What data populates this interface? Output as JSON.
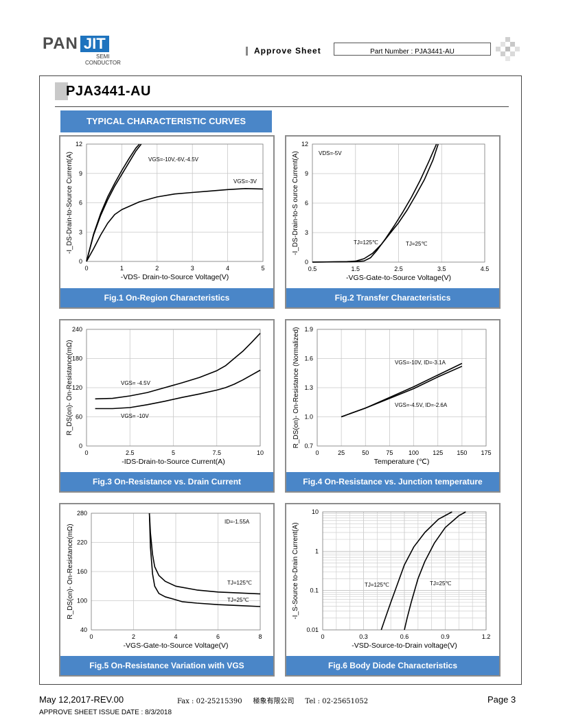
{
  "header": {
    "logo_main": "PAN",
    "logo_accent": "JIT",
    "logo_semi": "SEMI",
    "logo_conductor": "CONDUCTOR",
    "approve_sheet": "Approve Sheet",
    "part_number": "Part Number : PJA3441-AU"
  },
  "title": "PJA3441-AU",
  "section_banner": "TYPICAL CHARACTERISTIC CURVES",
  "chart_data": [
    {
      "type": "line",
      "caption": "Fig.1 On-Region Characteristics",
      "xlabel": "-VDS- Drain-to-Source Voltage(V)",
      "ylabel": "-I_DS-Drain-to-Source Current(A)",
      "xlim": [
        0,
        5
      ],
      "ylim": [
        0,
        12
      ],
      "xticks": [
        "0",
        "1",
        "2",
        "3",
        "4",
        "5"
      ],
      "yticks": [
        "0",
        "3",
        "6",
        "9",
        "12"
      ],
      "grid": true,
      "annotations": [
        "VGS=-10V,-6V,-4.5V",
        "VGS=-3V"
      ],
      "series": [
        {
          "x": [
            0,
            0.2,
            0.4,
            0.6,
            0.8,
            1.0,
            1.2,
            1.4,
            1.5
          ],
          "y": [
            0,
            2.8,
            4.9,
            6.6,
            8.0,
            9.3,
            10.5,
            11.6,
            12.0
          ]
        },
        {
          "x": [
            0,
            0.2,
            0.4,
            0.6,
            0.8,
            1.0,
            1.2,
            1.4,
            1.55
          ],
          "y": [
            0,
            2.7,
            4.7,
            6.3,
            7.7,
            8.9,
            10.1,
            11.3,
            12.0
          ]
        },
        {
          "x": [
            0,
            0.2,
            0.4,
            0.6,
            0.8,
            1.0,
            1.5,
            2.0,
            2.5,
            3.0,
            3.5,
            4.0,
            4.5,
            5.0
          ],
          "y": [
            0,
            1.3,
            2.7,
            3.9,
            4.8,
            5.3,
            6.1,
            6.6,
            6.9,
            7.05,
            7.2,
            7.35,
            7.45,
            7.4
          ]
        }
      ]
    },
    {
      "type": "line",
      "caption": "Fig.2 Transfer Characteristics",
      "xlabel": "-VGS-Gate-to-Source Voltage(V)",
      "ylabel": "-I_DS-Drain-to-S ource Current(A)",
      "xlim": [
        0.5,
        4.5
      ],
      "ylim": [
        0,
        12
      ],
      "xticks": [
        "0.5",
        "1.5",
        "2.5",
        "3.5",
        "4.5"
      ],
      "yticks": [
        "0",
        "3",
        "6",
        "9",
        "12"
      ],
      "grid": true,
      "annotations": [
        "VDS=-5V",
        "TJ=125℃",
        "TJ=25℃"
      ],
      "series": [
        {
          "x": [
            0.5,
            1.0,
            1.3,
            1.5,
            1.7,
            1.9,
            2.1,
            2.3,
            2.5,
            2.7,
            2.9,
            3.1,
            3.3,
            3.42
          ],
          "y": [
            0,
            0.03,
            0.05,
            0.1,
            0.35,
            0.9,
            1.8,
            2.9,
            4.0,
            5.3,
            6.8,
            8.4,
            10.4,
            12.0
          ]
        },
        {
          "x": [
            0.5,
            1.0,
            1.3,
            1.5,
            1.7,
            1.85,
            2.0,
            2.2,
            2.4,
            2.6,
            2.8,
            3.0,
            3.2,
            3.38
          ],
          "y": [
            0,
            0.02,
            0.03,
            0.05,
            0.12,
            0.45,
            1.2,
            2.4,
            3.7,
            5.1,
            6.6,
            8.3,
            10.2,
            12.0
          ]
        }
      ]
    },
    {
      "type": "line",
      "caption": "Fig.3 On-Resistance vs. Drain Current",
      "xlabel": "-IDS-Drain-to-Source  Current(A)",
      "ylabel": "R_DS(on)- On-Resistance(mΩ)",
      "xlim": [
        0,
        10
      ],
      "ylim": [
        0,
        240
      ],
      "xticks": [
        "0",
        "2.5",
        "5",
        "7.5",
        "10"
      ],
      "yticks": [
        "0",
        "60",
        "120",
        "180",
        "240"
      ],
      "grid": true,
      "annotations": [
        "VGS= -4.5V",
        "VGS= -10V"
      ],
      "series": [
        {
          "x": [
            0.5,
            1.5,
            2.5,
            3.5,
            4.5,
            5.5,
            6.5,
            7.5,
            8.0,
            8.5,
            9.0,
            9.5,
            10.0
          ],
          "y": [
            97,
            98,
            103,
            110,
            120,
            130,
            141,
            155,
            165,
            180,
            195,
            213,
            232
          ]
        },
        {
          "x": [
            0.5,
            1.5,
            2.5,
            3.5,
            4.5,
            5.5,
            6.5,
            7.5,
            8.0,
            8.5,
            9.0,
            9.5,
            10.0
          ],
          "y": [
            77,
            77,
            79,
            85,
            92,
            100,
            107,
            115,
            120,
            127,
            136,
            146,
            156
          ]
        }
      ]
    },
    {
      "type": "line",
      "caption": "Fig.4 On-Resistance vs. Junction temperature",
      "xlabel": "Temperature (℃)",
      "ylabel": "R_DS(on)- On-Resistance (Normalized)",
      "xlim": [
        0,
        175
      ],
      "ylim": [
        0.7,
        1.9
      ],
      "xticks": [
        "0",
        "25",
        "50",
        "75",
        "100",
        "125",
        "150",
        "175"
      ],
      "yticks": [
        "0.7",
        "1.0",
        "1.3",
        "1.6",
        "1.9"
      ],
      "grid": true,
      "annotations": [
        "VGS=-10V, ID=-3.1A",
        "VGS=-4.5V, ID=-2.6A"
      ],
      "series": [
        {
          "x": [
            25,
            50,
            75,
            100,
            125,
            150
          ],
          "y": [
            1.0,
            1.09,
            1.2,
            1.31,
            1.43,
            1.55
          ]
        },
        {
          "x": [
            25,
            50,
            75,
            100,
            125,
            150
          ],
          "y": [
            1.0,
            1.09,
            1.19,
            1.29,
            1.41,
            1.52
          ]
        }
      ]
    },
    {
      "type": "line",
      "caption": "Fig.5 On-Resistance Variation with VGS",
      "xlabel": "-VGS-Gate-to-Source  Voltage(V)",
      "ylabel": "R_DS(on)- On-Resistance(mΩ)",
      "xlim": [
        0,
        8
      ],
      "ylim": [
        40,
        280
      ],
      "xticks": [
        "0",
        "2",
        "4",
        "6",
        "8"
      ],
      "yticks": [
        "40",
        "100",
        "160",
        "220",
        "280"
      ],
      "grid": true,
      "annotations": [
        "ID=-1.55A",
        "TJ=125℃",
        "TJ=25℃"
      ],
      "series": [
        {
          "x": [
            2.75,
            2.8,
            2.9,
            3.0,
            3.2,
            3.5,
            4.0,
            5.0,
            6.0,
            7.0,
            8.0
          ],
          "y": [
            280,
            240,
            195,
            170,
            152,
            140,
            130,
            122,
            118,
            116,
            114
          ]
        },
        {
          "x": [
            2.75,
            2.8,
            2.9,
            3.0,
            3.2,
            3.5,
            4.0,
            4.3,
            5.0,
            6.0,
            7.0,
            8.0
          ],
          "y": [
            280,
            210,
            155,
            130,
            115,
            108,
            102,
            98,
            95,
            92,
            90,
            88
          ]
        }
      ]
    },
    {
      "type": "line",
      "caption": "Fig.6 Body Diode Characteristics",
      "xlabel": "-VSD-Source-to-Drain  voltage(V)",
      "ylabel": "-I_S-Source to-Drain Current(A)",
      "xlim": [
        0,
        1.2
      ],
      "ylim": [
        0.01,
        10
      ],
      "xscale": "linear",
      "yscale": "log",
      "xticks": [
        "0",
        "0.3",
        "0.6",
        "0.9",
        "1.2"
      ],
      "yticks": [
        "0.01",
        "0.1",
        "1",
        "10"
      ],
      "grid": true,
      "annotations": [
        "TJ=125℃",
        "TJ=25℃"
      ],
      "series": [
        {
          "x": [
            0.43,
            0.46,
            0.5,
            0.55,
            0.6,
            0.67,
            0.75,
            0.85,
            0.95
          ],
          "y": [
            0.01,
            0.02,
            0.05,
            0.15,
            0.45,
            1.3,
            3.0,
            6.5,
            10
          ]
        },
        {
          "x": [
            0.6,
            0.62,
            0.65,
            0.7,
            0.75,
            0.82,
            0.9,
            1.0,
            1.05
          ],
          "y": [
            0.01,
            0.02,
            0.05,
            0.2,
            0.55,
            1.6,
            4.0,
            8.0,
            10
          ]
        }
      ]
    }
  ],
  "footer": {
    "date_rev": "May 12,2017-REV.00",
    "contact": "Fax : 02-25215390     極象有限公司     Tel : 02-25651052",
    "page": "Page 3",
    "issue_date": "APPROVE SHEET ISSUE DATE : 8/3/2018"
  }
}
